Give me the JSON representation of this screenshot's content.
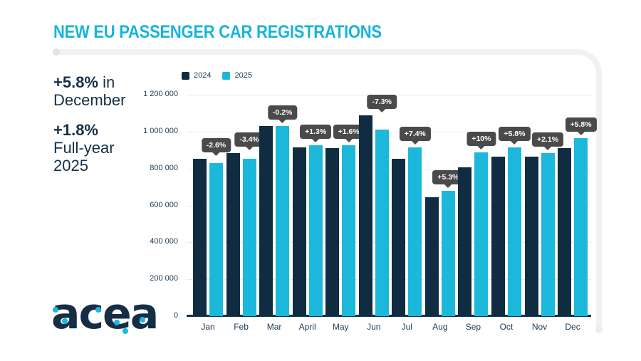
{
  "title": "NEW EU PASSENGER CAR REGISTRATIONS",
  "stats": {
    "december": {
      "bold": "+5.8%",
      "tail": " in",
      "line2": "December"
    },
    "full_year": {
      "bold": "+1.8%",
      "line2": "Full-year",
      "line3": "2025"
    }
  },
  "logo_text": "acea",
  "colors": {
    "navy": "#102c42",
    "cyan": "#1bb8dc",
    "title_cyan": "#17b4dc",
    "tooltip_bg": "#4a4a4a",
    "text_navy": "#15314a"
  },
  "chart_data": {
    "type": "bar",
    "title": "NEW EU PASSENGER CAR REGISTRATIONS",
    "categories": [
      "Jan",
      "Feb",
      "Mar",
      "April",
      "May",
      "Jun",
      "Jul",
      "Aug",
      "Sep",
      "Oct",
      "Nov",
      "Dec"
    ],
    "series": [
      {
        "name": "2024",
        "color": "#102c42",
        "values": [
          853000,
          884000,
          1031000,
          913000,
          911000,
          1090000,
          852000,
          644000,
          808000,
          865000,
          866000,
          910000
        ]
      },
      {
        "name": "2025",
        "color": "#1bb8dc",
        "values": [
          831000,
          854000,
          1029000,
          925000,
          926000,
          1010000,
          915000,
          678000,
          889000,
          915000,
          884000,
          963000
        ]
      }
    ],
    "change_labels": [
      "-2.6%",
      "-3.4%",
      "-0.2%",
      "+1.3%",
      "+1.6%",
      "-7.3%",
      "+7.4%",
      "+5.3%",
      "+10%",
      "+5.8%",
      "+2.1%",
      "+5.8%"
    ],
    "y_ticks": [
      "1 200 000",
      "1 000 000",
      "800 000",
      "600 000",
      "400 000",
      "200 000",
      "0"
    ],
    "ylim": [
      0,
      1200000
    ],
    "grid": true,
    "legend_position": "top-left",
    "xlabel": "",
    "ylabel": ""
  }
}
